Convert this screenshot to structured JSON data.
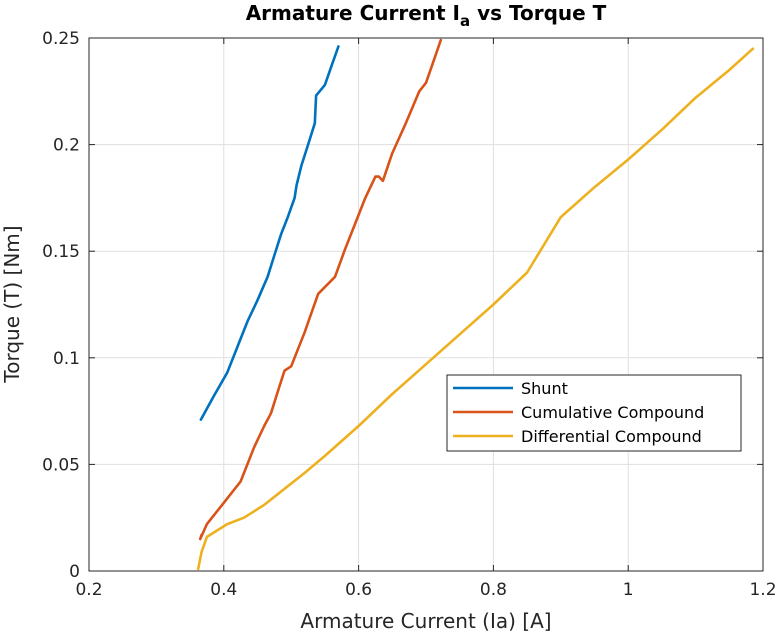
{
  "chart_data": {
    "type": "line",
    "title": "Armature Current I",
    "title_subscript": "a",
    "title_suffix": " vs Torque T",
    "xlabel": "Armature Current (Ia) [A]",
    "ylabel": "Torque (T) [Nm]",
    "xlim": [
      0.2,
      1.2
    ],
    "ylim": [
      0,
      0.25
    ],
    "xticks": [
      0.2,
      0.4,
      0.6,
      0.8,
      1,
      1.2
    ],
    "xtick_labels": [
      "0.2",
      "0.4",
      "0.6",
      "0.8",
      "1",
      "1.2"
    ],
    "yticks": [
      0,
      0.05,
      0.1,
      0.15,
      0.2,
      0.25
    ],
    "ytick_labels": [
      "0",
      "0.05",
      "0.1",
      "0.15",
      "0.2",
      "0.25"
    ],
    "grid": true,
    "legend_position": "lower-right",
    "series": [
      {
        "name": "Shunt",
        "color": "#0072BD",
        "x": [
          0.366,
          0.385,
          0.405,
          0.42,
          0.435,
          0.45,
          0.465,
          0.475,
          0.485,
          0.495,
          0.505,
          0.508,
          0.515,
          0.525,
          0.535,
          0.537,
          0.55,
          0.56,
          0.57
        ],
        "y": [
          0.071,
          0.082,
          0.093,
          0.105,
          0.117,
          0.127,
          0.138,
          0.148,
          0.158,
          0.166,
          0.175,
          0.181,
          0.19,
          0.2,
          0.21,
          0.223,
          0.228,
          0.237,
          0.246
        ]
      },
      {
        "name": "Cumulative Compound",
        "color": "#D95319",
        "x": [
          0.367,
          0.365,
          0.375,
          0.4,
          0.425,
          0.445,
          0.46,
          0.47,
          0.48,
          0.49,
          0.5,
          0.51,
          0.52,
          0.53,
          0.54,
          0.565,
          0.58,
          0.595,
          0.61,
          0.625,
          0.63,
          0.636,
          0.65,
          0.67,
          0.69,
          0.7,
          0.71,
          0.722
        ],
        "y": [
          0.017,
          0.015,
          0.022,
          0.032,
          0.042,
          0.058,
          0.068,
          0.074,
          0.084,
          0.094,
          0.096,
          0.104,
          0.112,
          0.121,
          0.13,
          0.138,
          0.151,
          0.163,
          0.175,
          0.185,
          0.185,
          0.183,
          0.196,
          0.21,
          0.225,
          0.229,
          0.238,
          0.249
        ]
      },
      {
        "name": "Differential Compound",
        "color": "#EDB120",
        "x": [
          0.362,
          0.367,
          0.375,
          0.405,
          0.43,
          0.46,
          0.48,
          0.52,
          0.55,
          0.6,
          0.65,
          0.7,
          0.75,
          0.8,
          0.85,
          0.9,
          0.95,
          1.0,
          1.05,
          1.1,
          1.15,
          1.185
        ],
        "y": [
          0.001,
          0.009,
          0.016,
          0.022,
          0.025,
          0.031,
          0.036,
          0.046,
          0.054,
          0.068,
          0.083,
          0.097,
          0.111,
          0.125,
          0.14,
          0.166,
          0.18,
          0.193,
          0.207,
          0.222,
          0.235,
          0.245
        ]
      }
    ]
  }
}
